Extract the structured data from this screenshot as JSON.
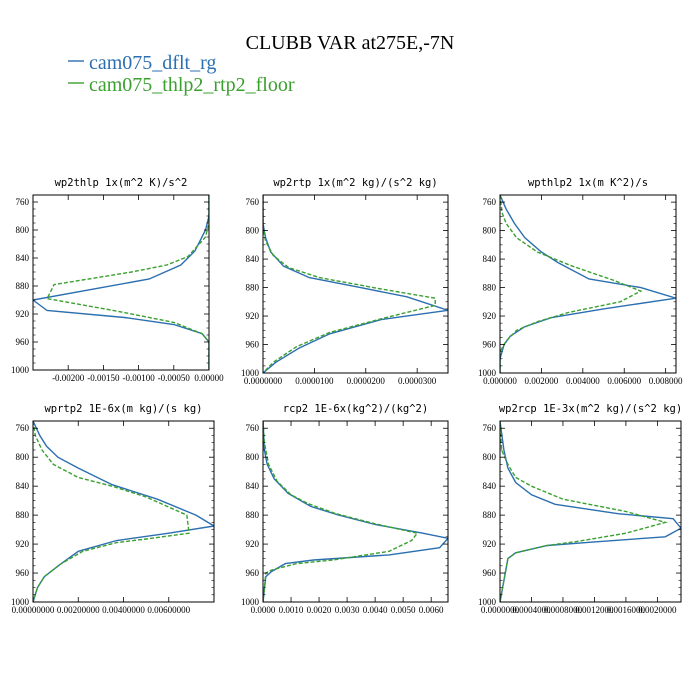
{
  "figure_title": "CLUBB VAR at275E,-7N",
  "colors": {
    "series1": "#2c6fb0",
    "series2": "#3aa02e",
    "frame": "#000000"
  },
  "chart_data": [
    {
      "type": "line",
      "title": "wp2thlp   1x(m^2 K)/s^2",
      "xlim": [
        -0.0025,
        0.0
      ],
      "ylim": [
        750,
        1000
      ],
      "xticks": [
        -0.002,
        -0.0015,
        -0.001,
        -0.0005,
        0.0
      ],
      "xticklabels": [
        "-0.00200",
        "-0.00150",
        "-0.00100",
        "-0.00050",
        "0.00000"
      ],
      "yticks": [
        760,
        800,
        840,
        880,
        920,
        960,
        1000
      ],
      "series": [
        {
          "name": "cam075_dflt_rg",
          "style": "solid",
          "points": [
            [
              0,
              750
            ],
            [
              0,
              780
            ],
            [
              -5e-05,
              800
            ],
            [
              -0.0002,
              830
            ],
            [
              -0.0004,
              850
            ],
            [
              -0.00085,
              870
            ],
            [
              -0.0025,
              900
            ],
            [
              -0.0023,
              915
            ],
            [
              -0.0012,
              925
            ],
            [
              -0.0005,
              935
            ],
            [
              -0.0001,
              948
            ],
            [
              0,
              960
            ],
            [
              0,
              1000
            ]
          ]
        },
        {
          "name": "cam075_thlp2_rtp2_floor",
          "style": "dashed",
          "points": [
            [
              0,
              750
            ],
            [
              0,
              790
            ],
            [
              -5e-05,
              810
            ],
            [
              -0.0003,
              838
            ],
            [
              -0.0006,
              850
            ],
            [
              -0.0011,
              860
            ],
            [
              -0.0022,
              878
            ],
            [
              -0.0023,
              898
            ],
            [
              -0.0013,
              916
            ],
            [
              -0.0005,
              932
            ],
            [
              -0.0001,
              948
            ],
            [
              0,
              960
            ],
            [
              0,
              1000
            ]
          ]
        }
      ]
    },
    {
      "type": "line",
      "title": "wp2rtp   1x(m^2 kg)/(s^2 kg)",
      "xlim": [
        0.0,
        3.6e-05
      ],
      "ylim": [
        750,
        1000
      ],
      "xticks": [
        0.0,
        1e-05,
        2e-05,
        3e-05
      ],
      "xticklabels": [
        "0.0000000",
        "0.0000100",
        "0.0000200",
        "0.0000300"
      ],
      "yticks": [
        760,
        800,
        840,
        880,
        920,
        960,
        1000
      ],
      "series": [
        {
          "name": "cam075_dflt_rg",
          "style": "solid",
          "points": [
            [
              0,
              750
            ],
            [
              0,
              790
            ],
            [
              5e-07,
              810
            ],
            [
              1.5e-06,
              830
            ],
            [
              4e-06,
              850
            ],
            [
              9e-06,
              866
            ],
            [
              1.9e-05,
              880
            ],
            [
              2.8e-05,
              893
            ],
            [
              3.6e-05,
              912
            ],
            [
              2.3e-05,
              925
            ],
            [
              1.3e-05,
              945
            ],
            [
              7e-06,
              965
            ],
            [
              2.5e-06,
              985
            ],
            [
              0,
              1000
            ]
          ]
        },
        {
          "name": "cam075_thlp2_rtp2_floor",
          "style": "dashed",
          "points": [
            [
              0,
              750
            ],
            [
              0,
              795
            ],
            [
              5e-07,
              815
            ],
            [
              2e-06,
              835
            ],
            [
              5e-06,
              852
            ],
            [
              1.1e-05,
              866
            ],
            [
              2.3e-05,
              882
            ],
            [
              3.35e-05,
              895
            ],
            [
              3.35e-05,
              905
            ],
            [
              2.4e-05,
              922
            ],
            [
              1.3e-05,
              943
            ],
            [
              6.5e-06,
              963
            ],
            [
              2e-06,
              985
            ],
            [
              0,
              1000
            ]
          ]
        }
      ]
    },
    {
      "type": "line",
      "title": "wpthlp2   1x(m K^2)/s",
      "xlim": [
        0.0,
        0.0085
      ],
      "ylim": [
        750,
        1000
      ],
      "xticks": [
        0.0,
        0.002,
        0.004,
        0.006,
        0.008
      ],
      "xticklabels": [
        "0.000000",
        "0.002000",
        "0.004000",
        "0.006000",
        "0.008000"
      ],
      "yticks": [
        760,
        800,
        840,
        880,
        920,
        960,
        1000
      ],
      "series": [
        {
          "name": "cam075_dflt_rg",
          "style": "solid",
          "points": [
            [
              0,
              750
            ],
            [
              0.0003,
              770
            ],
            [
              0.0007,
              790
            ],
            [
              0.0012,
              810
            ],
            [
              0.002,
              830
            ],
            [
              0.0028,
              845
            ],
            [
              0.0043,
              868
            ],
            [
              0.0068,
              880
            ],
            [
              0.0085,
              895
            ],
            [
              0.005,
              910
            ],
            [
              0.0025,
              922
            ],
            [
              0.0012,
              935
            ],
            [
              0.0005,
              948
            ],
            [
              0.0002,
              960
            ],
            [
              0,
              980
            ],
            [
              0,
              1000
            ]
          ]
        },
        {
          "name": "cam075_thlp2_rtp2_floor",
          "style": "dashed",
          "points": [
            [
              0,
              750
            ],
            [
              0.0001,
              775
            ],
            [
              0.0003,
              790
            ],
            [
              0.0008,
              810
            ],
            [
              0.0018,
              830
            ],
            [
              0.0035,
              850
            ],
            [
              0.0055,
              870
            ],
            [
              0.0068,
              885
            ],
            [
              0.0058,
              900
            ],
            [
              0.0033,
              915
            ],
            [
              0.0018,
              928
            ],
            [
              0.0008,
              940
            ],
            [
              0.0003,
              955
            ],
            [
              0,
              970
            ],
            [
              0,
              1000
            ]
          ]
        }
      ]
    },
    {
      "type": "line",
      "title": "wprtp2   1E-6x(m kg)/(s kg)",
      "xlim": [
        0.0,
        0.008
      ],
      "ylim": [
        750,
        1000
      ],
      "xticks": [
        0.0,
        0.002,
        0.004,
        0.006
      ],
      "xticklabels": [
        "0.00000000",
        "0.00200000",
        "0.00400000",
        "0.00600000"
      ],
      "yticks": [
        760,
        800,
        840,
        880,
        920,
        960,
        1000
      ],
      "series": [
        {
          "name": "cam075_dflt_rg",
          "style": "solid",
          "points": [
            [
              0,
              750
            ],
            [
              0.0003,
              770
            ],
            [
              0.0006,
              785
            ],
            [
              0.0011,
              800
            ],
            [
              0.002,
              815
            ],
            [
              0.0035,
              838
            ],
            [
              0.0055,
              858
            ],
            [
              0.0072,
              880
            ],
            [
              0.008,
              895
            ],
            [
              0.006,
              905
            ],
            [
              0.0037,
              915
            ],
            [
              0.002,
              930
            ],
            [
              0.0012,
              948
            ],
            [
              0.0005,
              965
            ],
            [
              0.0002,
              980
            ],
            [
              0,
              1000
            ]
          ]
        },
        {
          "name": "cam075_thlp2_rtp2_floor",
          "style": "dashed",
          "points": [
            [
              0,
              750
            ],
            [
              0.0001,
              770
            ],
            [
              0.0004,
              790
            ],
            [
              0.0009,
              810
            ],
            [
              0.002,
              828
            ],
            [
              0.0035,
              840
            ],
            [
              0.005,
              855
            ],
            [
              0.0068,
              880
            ],
            [
              0.0069,
              905
            ],
            [
              0.005,
              913
            ],
            [
              0.0037,
              918
            ],
            [
              0.0022,
              930
            ],
            [
              0.0012,
              948
            ],
            [
              0.0005,
              965
            ],
            [
              0.0002,
              980
            ],
            [
              0,
              1000
            ]
          ]
        }
      ]
    },
    {
      "type": "line",
      "title": "rcp2   1E-6x(kg^2)/(kg^2)",
      "xlim": [
        0.0,
        0.0066
      ],
      "ylim": [
        750,
        1000
      ],
      "xticks": [
        0.0,
        0.001,
        0.002,
        0.003,
        0.004,
        0.005,
        0.006
      ],
      "xticklabels": [
        "0.0000",
        "0.0010",
        "0.0020",
        "0.0030",
        "0.0040",
        "0.0050",
        "0.0060"
      ],
      "yticks": [
        760,
        800,
        840,
        880,
        920,
        960,
        1000
      ],
      "series": [
        {
          "name": "cam075_dflt_rg",
          "style": "solid",
          "points": [
            [
              0,
              750
            ],
            [
              5e-05,
              790
            ],
            [
              0.00015,
              810
            ],
            [
              0.0004,
              830
            ],
            [
              0.0009,
              850
            ],
            [
              0.0017,
              868
            ],
            [
              0.0027,
              880
            ],
            [
              0.004,
              893
            ],
            [
              0.0057,
              905
            ],
            [
              0.0066,
              912
            ],
            [
              0.0063,
              925
            ],
            [
              0.0045,
              935
            ],
            [
              0.0018,
              942
            ],
            [
              0.0008,
              947
            ],
            [
              0.0003,
              958
            ],
            [
              0.0001,
              965
            ],
            [
              0,
              1000
            ]
          ]
        },
        {
          "name": "cam075_thlp2_rtp2_floor",
          "style": "dashed",
          "points": [
            [
              0,
              750
            ],
            [
              5e-05,
              780
            ],
            [
              0.0002,
              810
            ],
            [
              0.0005,
              833
            ],
            [
              0.001,
              852
            ],
            [
              0.0016,
              864
            ],
            [
              0.0026,
              878
            ],
            [
              0.004,
              892
            ],
            [
              0.0055,
              905
            ],
            [
              0.0053,
              915
            ],
            [
              0.0045,
              930
            ],
            [
              0.0025,
              942
            ],
            [
              0.0012,
              947
            ],
            [
              0.0003,
              956
            ],
            [
              0.0001,
              960
            ],
            [
              0,
              1000
            ]
          ]
        }
      ]
    },
    {
      "type": "line",
      "title": "wp2rcp   1E-3x(m^2 kg)/(s^2 kg)",
      "xlim": [
        0.0,
        0.0023
      ],
      "ylim": [
        750,
        1000
      ],
      "xticks": [
        0.0,
        0.0004,
        0.0008,
        0.0012,
        0.0016,
        0.002
      ],
      "xticklabels": [
        "0.0000000",
        "0.0004000",
        "0.0008000",
        "0.0012000",
        "0.0016000",
        "0.0020000"
      ],
      "yticks": [
        760,
        800,
        840,
        880,
        920,
        960,
        1000
      ],
      "series": [
        {
          "name": "cam075_dflt_rg",
          "style": "solid",
          "points": [
            [
              0,
              750
            ],
            [
              5e-05,
              790
            ],
            [
              0.0001,
              815
            ],
            [
              0.0002,
              835
            ],
            [
              0.0004,
              852
            ],
            [
              0.0007,
              865
            ],
            [
              0.0015,
              878
            ],
            [
              0.0022,
              885
            ],
            [
              0.0023,
              898
            ],
            [
              0.0021,
              910
            ],
            [
              0.0012,
              917
            ],
            [
              0.0006,
              922
            ],
            [
              0.0002,
              932
            ],
            [
              0.0001,
              940
            ],
            [
              0,
              1000
            ]
          ]
        },
        {
          "name": "cam075_thlp2_rtp2_floor",
          "style": "dashed",
          "points": [
            [
              0,
              750
            ],
            [
              2e-05,
              790
            ],
            [
              0.0001,
              810
            ],
            [
              0.0002,
              828
            ],
            [
              0.0004,
              840
            ],
            [
              0.0008,
              858
            ],
            [
              0.0016,
              875
            ],
            [
              0.0021,
              890
            ],
            [
              0.0016,
              905
            ],
            [
              0.001,
              916
            ],
            [
              0.0006,
              922
            ],
            [
              0.0002,
              932
            ],
            [
              0.0001,
              940
            ],
            [
              0,
              1000
            ]
          ]
        }
      ]
    }
  ]
}
